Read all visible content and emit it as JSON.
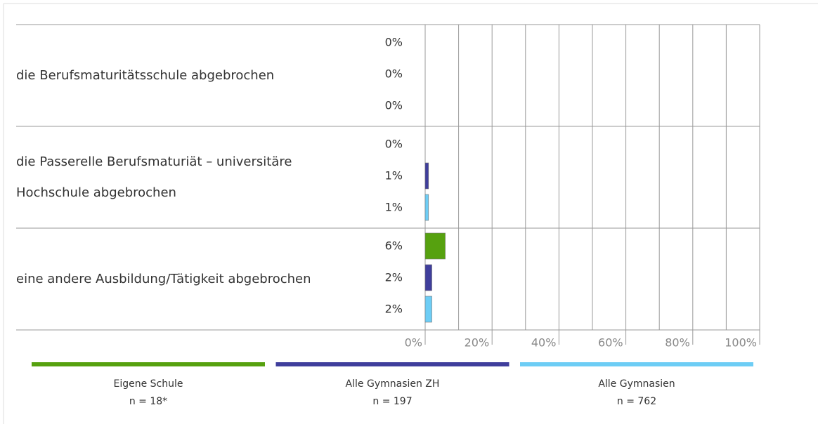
{
  "chart_data": {
    "type": "hbar",
    "categories": [
      "die Berufsmaturitätsschule abgebrochen",
      "die Passerelle Berufsmaturiät – universitäre Hochschule abgebrochen",
      "eine andere Ausbildung/Tätigkeit abgebrochen"
    ],
    "series": [
      {
        "name": "Eigene Schule",
        "sample": "n = 18*",
        "color": "#56a10f",
        "values": [
          0,
          0,
          6
        ],
        "value_labels": [
          "0%",
          "0%",
          "6%"
        ]
      },
      {
        "name": "Alle Gymnasien ZH",
        "sample": "n = 197",
        "color": "#3f3e9c",
        "values": [
          0,
          1,
          2
        ],
        "value_labels": [
          "0%",
          "1%",
          "2%"
        ]
      },
      {
        "name": "Alle Gymnasien",
        "sample": "n = 762",
        "color": "#6dcdf5",
        "values": [
          0,
          1,
          2
        ],
        "value_labels": [
          "0%",
          "1%",
          "2%"
        ]
      }
    ],
    "xlim": [
      0,
      100
    ],
    "xticks": [
      {
        "value": 0,
        "label": "0%"
      },
      {
        "value": 20,
        "label": "20%"
      },
      {
        "value": 40,
        "label": "40%"
      },
      {
        "value": 60,
        "label": "60%"
      },
      {
        "value": 80,
        "label": "80%"
      },
      {
        "value": 100,
        "label": "100%"
      }
    ],
    "minor_xticks": [
      10,
      30,
      50,
      70,
      90
    ],
    "grid": true
  }
}
